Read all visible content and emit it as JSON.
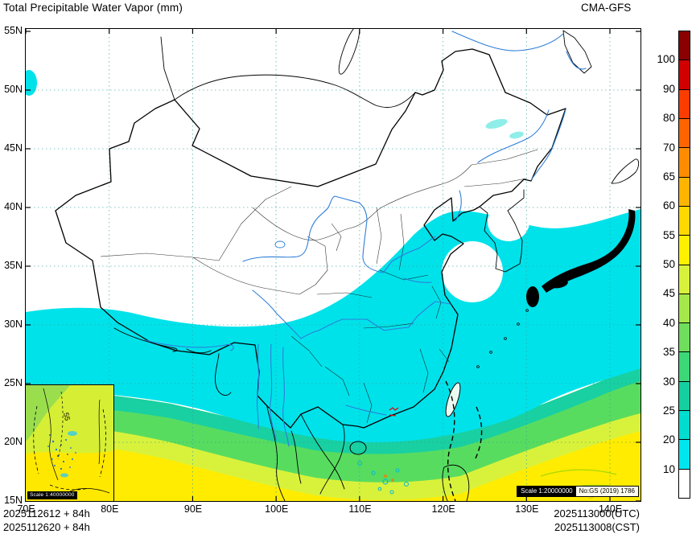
{
  "header": {
    "title": "Total Precipitable Water Vapor (mm)",
    "model": "CMA-GFS"
  },
  "axes": {
    "x_ticks": [
      "70E",
      "80E",
      "90E",
      "100E",
      "110E",
      "120E",
      "130E",
      "140E"
    ],
    "y_ticks": [
      "55N",
      "50N",
      "45N",
      "40N",
      "35N",
      "30N",
      "25N",
      "20N",
      "15N"
    ]
  },
  "colorbar": {
    "labels": [
      "100",
      "90",
      "80",
      "70",
      "65",
      "60",
      "55",
      "50",
      "45",
      "40",
      "35",
      "30",
      "25",
      "20",
      "10"
    ],
    "colors": [
      "#8b0000",
      "#d10000",
      "#fa3c00",
      "#ff6400",
      "#ff8c00",
      "#ffb400",
      "#ffd800",
      "#fff000",
      "#d8f23c",
      "#a4e84a",
      "#6ede5c",
      "#3cd878",
      "#14d0a0",
      "#00dcce",
      "#00e6ee",
      "#ffffff"
    ]
  },
  "map_chip": {
    "scale": "Scale 1:20000000",
    "number": "No:GS (2019) 1786"
  },
  "inset": {
    "scale": "Scale 1:40000000",
    "contour_label": "55"
  },
  "footer": {
    "run1": "2025112612 + 84h",
    "run2": "2025112620 + 84h",
    "valid_utc": "2025113000(UTC)",
    "valid_cst": "2025113008(CST)"
  },
  "chart_data": {
    "type": "heatmap",
    "title": "Total Precipitable Water Vapor (mm)",
    "model": "CMA-GFS",
    "region": {
      "lon": [
        "70E",
        "140E"
      ],
      "lat": [
        "15N",
        "55N"
      ]
    },
    "levels_mm": [
      10,
      20,
      25,
      30,
      35,
      40,
      45,
      50,
      55,
      60,
      65,
      70,
      80,
      90,
      100
    ],
    "level_colors_low_to_high": [
      "#ffffff",
      "#00e6ee",
      "#00dcce",
      "#14d0a0",
      "#3cd878",
      "#6ede5c",
      "#a4e84a",
      "#d8f23c",
      "#fff000",
      "#ffd800",
      "#ffb400",
      "#ff8c00",
      "#ff6400",
      "#fa3c00",
      "#d10000",
      "#8b0000"
    ],
    "init_time_runs": [
      "2025112612 + 84h",
      "2025112620 + 84h"
    ],
    "valid_times": [
      "2025113000(UTC)",
      "2025113008(CST)"
    ],
    "colorbar_position": "right",
    "grid": "dashed graticule every 10 deg lon / 5 deg lat",
    "pattern_summary": {
      "white_below_10mm": "northern China, Mongolia, Tibet, Xinjiang, NE China",
      "cyan_10_25mm": "central-south China, east coast, Yellow Sea rim, Sea of Japan",
      "green_25_45mm": "far south China, Hainan, northern South China Sea",
      "yellow_45_60mm": "southern ocean band along 15-20N and southeast corner"
    }
  }
}
